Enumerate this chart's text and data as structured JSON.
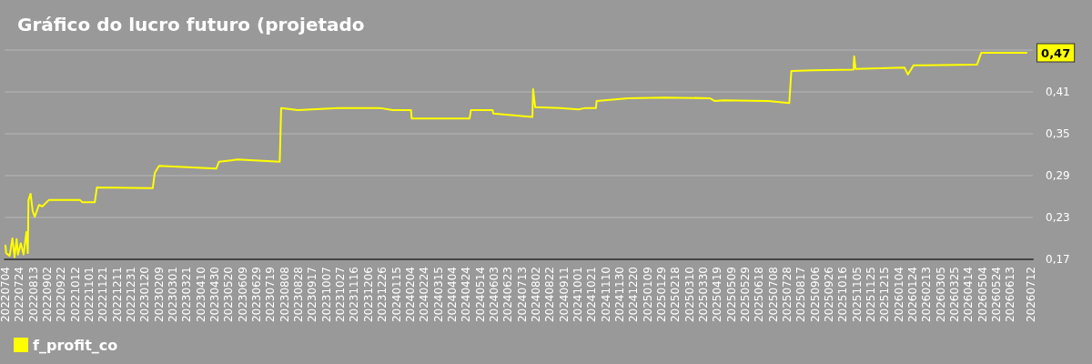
{
  "chart_data": {
    "type": "line",
    "title": "Gráfico do lucro futuro (projetado",
    "x": [
      "2022-07-04",
      "2022-07-05",
      "2022-07-10",
      "2022-07-14",
      "2022-07-17",
      "2022-07-20",
      "2022-07-22",
      "2022-07-26",
      "2022-07-30",
      "2022-08-03",
      "2022-08-05",
      "2022-08-06",
      "2022-08-09",
      "2022-08-12",
      "2022-08-15",
      "2022-08-21",
      "2022-08-26",
      "2022-09-04",
      "2022-10-19",
      "2022-10-22",
      "2022-11-09",
      "2022-11-12",
      "2023-01-31",
      "2023-02-03",
      "2023-02-09",
      "2023-05-02",
      "2023-05-06",
      "2023-06-01",
      "2023-08-01",
      "2023-08-03",
      "2023-08-27",
      "2023-10-24",
      "2023-12-22",
      "2024-01-10",
      "2024-02-05",
      "2024-02-06",
      "2024-04-29",
      "2024-05-01",
      "2024-06-01",
      "2024-06-02",
      "2024-07-16",
      "2024-07-28",
      "2024-07-29",
      "2024-08-01",
      "2024-09-06",
      "2024-10-02",
      "2024-10-12",
      "2024-10-27",
      "2024-10-28",
      "2024-12-12",
      "2025-02-02",
      "2025-04-08",
      "2025-04-15",
      "2025-04-28",
      "2025-07-01",
      "2025-07-31",
      "2025-08-03",
      "2025-09-04",
      "2025-10-31",
      "2025-11-01",
      "2025-11-03",
      "2026-01-12",
      "2026-01-17",
      "2026-01-25",
      "2026-04-26",
      "2026-05-02",
      "2026-07-06"
    ],
    "series": [
      {
        "name": "f_profit_co",
        "color": "#ffff00",
        "values": [
          0.19,
          0.179,
          0.175,
          0.2,
          0.173,
          0.199,
          0.177,
          0.193,
          0.177,
          0.209,
          0.179,
          0.255,
          0.264,
          0.239,
          0.231,
          0.248,
          0.246,
          0.255,
          0.255,
          0.252,
          0.252,
          0.273,
          0.272,
          0.294,
          0.304,
          0.3,
          0.31,
          0.313,
          0.31,
          0.387,
          0.384,
          0.387,
          0.387,
          0.384,
          0.384,
          0.372,
          0.372,
          0.384,
          0.384,
          0.379,
          0.375,
          0.374,
          0.414,
          0.388,
          0.387,
          0.385,
          0.387,
          0.387,
          0.397,
          0.401,
          0.402,
          0.401,
          0.397,
          0.398,
          0.397,
          0.394,
          0.44,
          0.441,
          0.442,
          0.461,
          0.443,
          0.445,
          0.435,
          0.448,
          0.449,
          0.466,
          0.466
        ],
        "value_labels": [
          null,
          null,
          null,
          null,
          null,
          null,
          null,
          null,
          null,
          null,
          null,
          null,
          null,
          null,
          null,
          null,
          null,
          null,
          null,
          null,
          null,
          null,
          null,
          null,
          null,
          null,
          null,
          null,
          null,
          null,
          null,
          null,
          null,
          null,
          null,
          null,
          null,
          null,
          null,
          null,
          null,
          null,
          null,
          null,
          null,
          null,
          null,
          null,
          null,
          null,
          null,
          null,
          null,
          null,
          null,
          null,
          null,
          null,
          null,
          null,
          null,
          null,
          null,
          null,
          null,
          null,
          "0,47"
        ]
      }
    ],
    "xlim": [
      "2022-07-03",
      "2026-07-15"
    ],
    "xticks": [
      {
        "value": "2022-07-04",
        "label": "20220704"
      },
      {
        "value": "2022-07-24",
        "label": "20220724"
      },
      {
        "value": "2022-08-13",
        "label": "20220813"
      },
      {
        "value": "2022-09-02",
        "label": "20220902"
      },
      {
        "value": "2022-09-22",
        "label": "20220922"
      },
      {
        "value": "2022-10-12",
        "label": "20221012"
      },
      {
        "value": "2022-11-01",
        "label": "20221101"
      },
      {
        "value": "2022-11-21",
        "label": "20221121"
      },
      {
        "value": "2022-12-11",
        "label": "20221211"
      },
      {
        "value": "2022-12-31",
        "label": "20221231"
      },
      {
        "value": "2023-01-20",
        "label": "20230120"
      },
      {
        "value": "2023-02-09",
        "label": "20230209"
      },
      {
        "value": "2023-03-01",
        "label": "20230301"
      },
      {
        "value": "2023-03-21",
        "label": "20230321"
      },
      {
        "value": "2023-04-10",
        "label": "20230410"
      },
      {
        "value": "2023-04-30",
        "label": "20230430"
      },
      {
        "value": "2023-05-20",
        "label": "20230520"
      },
      {
        "value": "2023-06-09",
        "label": "20230609"
      },
      {
        "value": "2023-06-29",
        "label": "20230629"
      },
      {
        "value": "2023-07-19",
        "label": "20230719"
      },
      {
        "value": "2023-08-08",
        "label": "20230808"
      },
      {
        "value": "2023-08-28",
        "label": "20230828"
      },
      {
        "value": "2023-09-17",
        "label": "20230917"
      },
      {
        "value": "2023-10-07",
        "label": "20231007"
      },
      {
        "value": "2023-10-27",
        "label": "20231027"
      },
      {
        "value": "2023-11-16",
        "label": "20231116"
      },
      {
        "value": "2023-12-06",
        "label": "20231206"
      },
      {
        "value": "2023-12-26",
        "label": "20231226"
      },
      {
        "value": "2024-01-15",
        "label": "20240115"
      },
      {
        "value": "2024-02-04",
        "label": "20240204"
      },
      {
        "value": "2024-02-24",
        "label": "20240224"
      },
      {
        "value": "2024-03-15",
        "label": "20240315"
      },
      {
        "value": "2024-04-04",
        "label": "20240404"
      },
      {
        "value": "2024-04-24",
        "label": "20240424"
      },
      {
        "value": "2024-05-14",
        "label": "20240514"
      },
      {
        "value": "2024-06-03",
        "label": "20240603"
      },
      {
        "value": "2024-06-23",
        "label": "20240623"
      },
      {
        "value": "2024-07-13",
        "label": "20240713"
      },
      {
        "value": "2024-08-02",
        "label": "20240802"
      },
      {
        "value": "2024-08-22",
        "label": "20240822"
      },
      {
        "value": "2024-09-11",
        "label": "20240911"
      },
      {
        "value": "2024-10-01",
        "label": "20241001"
      },
      {
        "value": "2024-10-21",
        "label": "20241021"
      },
      {
        "value": "2024-11-10",
        "label": "20241110"
      },
      {
        "value": "2024-11-30",
        "label": "20241130"
      },
      {
        "value": "2024-12-20",
        "label": "20241220"
      },
      {
        "value": "2025-01-09",
        "label": "20250109"
      },
      {
        "value": "2025-01-29",
        "label": "20250129"
      },
      {
        "value": "2025-02-18",
        "label": "20250218"
      },
      {
        "value": "2025-03-10",
        "label": "20250310"
      },
      {
        "value": "2025-03-30",
        "label": "20250330"
      },
      {
        "value": "2025-04-19",
        "label": "20250419"
      },
      {
        "value": "2025-05-09",
        "label": "20250509"
      },
      {
        "value": "2025-05-29",
        "label": "20250529"
      },
      {
        "value": "2025-06-18",
        "label": "20250618"
      },
      {
        "value": "2025-07-08",
        "label": "20250708"
      },
      {
        "value": "2025-07-28",
        "label": "20250728"
      },
      {
        "value": "2025-08-17",
        "label": "20250817"
      },
      {
        "value": "2025-09-06",
        "label": "20250906"
      },
      {
        "value": "2025-09-26",
        "label": "20250926"
      },
      {
        "value": "2025-10-16",
        "label": "20251016"
      },
      {
        "value": "2025-11-05",
        "label": "20251105"
      },
      {
        "value": "2025-11-25",
        "label": "20251125"
      },
      {
        "value": "2025-12-15",
        "label": "20251215"
      },
      {
        "value": "2026-01-04",
        "label": "20260104"
      },
      {
        "value": "2026-01-24",
        "label": "20260124"
      },
      {
        "value": "2026-02-13",
        "label": "20260213"
      },
      {
        "value": "2026-03-05",
        "label": "20260305"
      },
      {
        "value": "2026-03-25",
        "label": "20260325"
      },
      {
        "value": "2026-04-14",
        "label": "20260414"
      },
      {
        "value": "2026-05-04",
        "label": "20260504"
      },
      {
        "value": "2026-05-24",
        "label": "20260524"
      },
      {
        "value": "2026-06-13",
        "label": "20260613"
      },
      {
        "value": "2026-07-12",
        "label": "20260712"
      }
    ],
    "ylim": [
      0.17,
      0.47
    ],
    "yticks": [
      {
        "value": 0.17,
        "label": "0,17"
      },
      {
        "value": 0.23,
        "label": "0,23"
      },
      {
        "value": 0.29,
        "label": "0,29"
      },
      {
        "value": 0.35,
        "label": "0,35"
      },
      {
        "value": 0.41,
        "label": "0,41"
      },
      {
        "value": 0.47,
        "label": null
      }
    ],
    "grid": "y",
    "legend": "bottom left",
    "marker": "none",
    "line_style": "solid"
  }
}
